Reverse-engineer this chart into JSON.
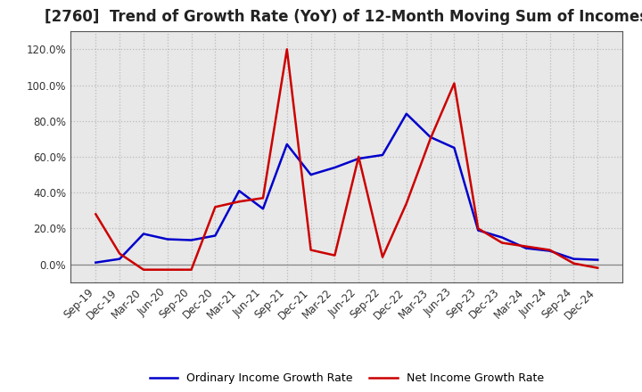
{
  "title": "[2760]  Trend of Growth Rate (YoY) of 12-Month Moving Sum of Incomes",
  "x_labels": [
    "Sep-19",
    "Dec-19",
    "Mar-20",
    "Jun-20",
    "Sep-20",
    "Dec-20",
    "Mar-21",
    "Jun-21",
    "Sep-21",
    "Dec-21",
    "Mar-22",
    "Jun-22",
    "Sep-22",
    "Dec-22",
    "Mar-23",
    "Jun-23",
    "Sep-23",
    "Dec-23",
    "Mar-24",
    "Jun-24",
    "Sep-24",
    "Dec-24"
  ],
  "ordinary_income": [
    1.0,
    3.0,
    17.0,
    14.0,
    13.5,
    16.0,
    41.0,
    31.0,
    67.0,
    50.0,
    54.0,
    59.0,
    61.0,
    84.0,
    71.0,
    65.0,
    19.0,
    15.0,
    9.0,
    7.5,
    3.0,
    2.5
  ],
  "net_income": [
    28.0,
    6.0,
    -3.0,
    -3.0,
    -3.0,
    32.0,
    35.0,
    37.0,
    120.0,
    8.0,
    5.0,
    60.0,
    4.0,
    34.0,
    70.0,
    101.0,
    20.0,
    12.0,
    10.0,
    8.0,
    0.5,
    -2.0
  ],
  "ordinary_color": "#0000cc",
  "net_color": "#cc0000",
  "ylim_min": -10,
  "ylim_max": 130,
  "yticks": [
    0.0,
    20.0,
    40.0,
    60.0,
    80.0,
    100.0,
    120.0
  ],
  "plot_bg_color": "#e8e8e8",
  "outer_bg_color": "#ffffff",
  "grid_color": "#bbbbbb",
  "spine_color": "#555555",
  "legend_ordinary": "Ordinary Income Growth Rate",
  "legend_net": "Net Income Growth Rate",
  "title_fontsize": 12,
  "tick_fontsize": 8.5,
  "legend_fontsize": 9
}
